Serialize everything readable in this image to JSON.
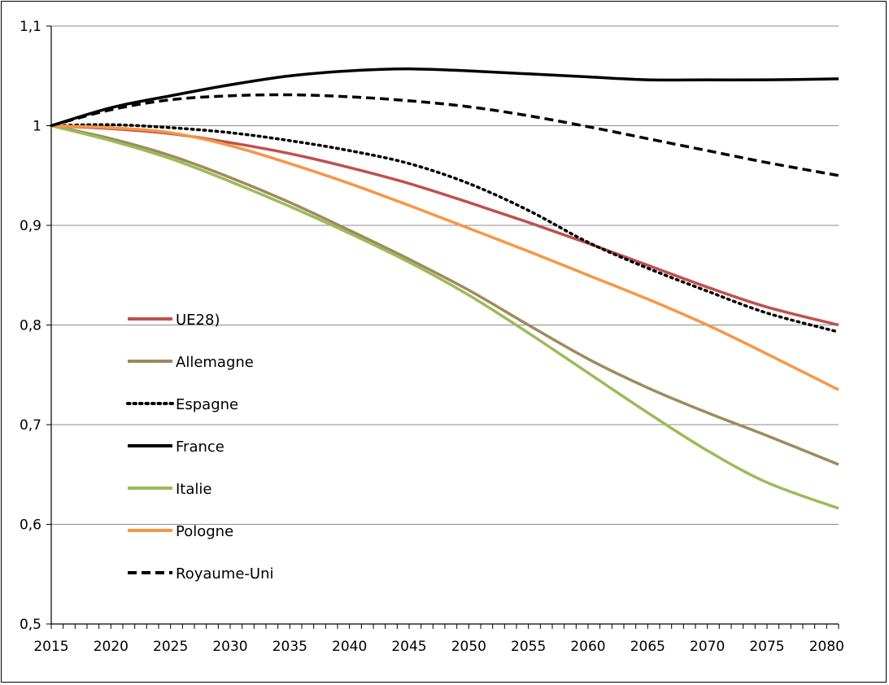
{
  "chart_data": {
    "type": "line",
    "title": "",
    "xlabel": "",
    "ylabel": "",
    "xlim": [
      2015,
      2081
    ],
    "ylim": [
      0.5,
      1.1
    ],
    "x_ticks": [
      2015,
      2020,
      2025,
      2030,
      2035,
      2040,
      2045,
      2050,
      2055,
      2060,
      2065,
      2070,
      2075,
      2080
    ],
    "x_tick_labels": [
      "2015",
      "2020",
      "2025",
      "2030",
      "2035",
      "2040",
      "2045",
      "2050",
      "2055",
      "2060",
      "2065",
      "2070",
      "2075",
      "2080"
    ],
    "y_ticks": [
      0.5,
      0.6,
      0.7,
      0.8,
      0.9,
      1.0,
      1.1
    ],
    "y_tick_labels": [
      "0,5",
      "0,6",
      "0,7",
      "0,8",
      "0,9",
      "1",
      "1,1"
    ],
    "grid": "horizontal",
    "legend_position": "left-inside",
    "x": [
      2015,
      2020,
      2025,
      2030,
      2035,
      2040,
      2045,
      2050,
      2055,
      2060,
      2065,
      2070,
      2075,
      2081
    ],
    "series": [
      {
        "name": "UE28)",
        "color": "#c0504d",
        "style": "solid",
        "values": [
          1.0,
          0.997,
          0.992,
          0.983,
          0.972,
          0.958,
          0.942,
          0.923,
          0.903,
          0.882,
          0.86,
          0.838,
          0.818,
          0.8
        ]
      },
      {
        "name": "Allemagne",
        "color": "#9e8a5e",
        "style": "solid",
        "values": [
          1.0,
          0.987,
          0.97,
          0.948,
          0.923,
          0.895,
          0.866,
          0.835,
          0.8,
          0.766,
          0.737,
          0.712,
          0.689,
          0.66
        ]
      },
      {
        "name": "Espagne",
        "color": "#000000",
        "style": "dotted",
        "values": [
          1.0,
          1.001,
          0.998,
          0.993,
          0.985,
          0.975,
          0.962,
          0.942,
          0.915,
          0.883,
          0.857,
          0.834,
          0.812,
          0.793
        ]
      },
      {
        "name": "France",
        "color": "#000000",
        "style": "solid",
        "values": [
          1.0,
          1.018,
          1.03,
          1.041,
          1.05,
          1.055,
          1.057,
          1.055,
          1.052,
          1.049,
          1.046,
          1.046,
          1.046,
          1.047
        ]
      },
      {
        "name": "Italie",
        "color": "#9bbb59",
        "style": "solid",
        "values": [
          1.0,
          0.985,
          0.967,
          0.944,
          0.919,
          0.892,
          0.863,
          0.83,
          0.792,
          0.752,
          0.712,
          0.674,
          0.642,
          0.616
        ]
      },
      {
        "name": "Pologne",
        "color": "#f79646",
        "style": "solid",
        "values": [
          1.0,
          0.998,
          0.993,
          0.98,
          0.962,
          0.942,
          0.92,
          0.897,
          0.874,
          0.85,
          0.826,
          0.8,
          0.771,
          0.735
        ]
      },
      {
        "name": "Royaume-Uni",
        "color": "#000000",
        "style": "dashed",
        "values": [
          1.0,
          1.016,
          1.026,
          1.03,
          1.031,
          1.029,
          1.025,
          1.019,
          1.01,
          0.999,
          0.987,
          0.975,
          0.963,
          0.95
        ]
      }
    ]
  }
}
